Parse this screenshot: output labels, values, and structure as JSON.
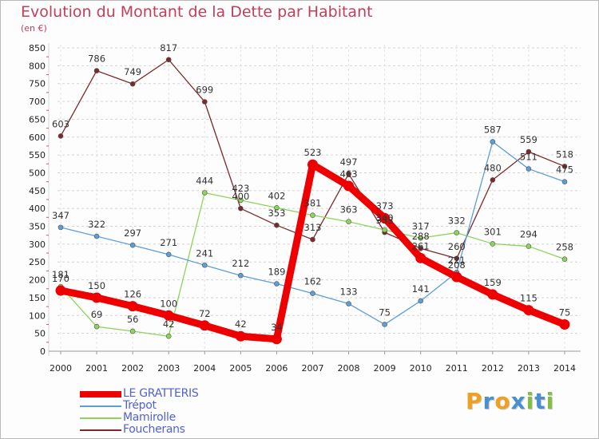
{
  "header": {
    "title": "Evolution du Montant de la Dette par Habitant",
    "unit": "(en €)"
  },
  "brand": {
    "letters": [
      "P",
      "r",
      "o",
      "x",
      "i",
      "t",
      "i"
    ],
    "colors": [
      "#f0a020",
      "#4a90d0",
      "#f0a020",
      "#4a90d0",
      "#80c040",
      "#4a90d0",
      "#80c040"
    ]
  },
  "chart_data": {
    "type": "line",
    "title": "Evolution du Montant de la Dette par Habitant",
    "subtitle": "(en €)",
    "xlabel": "",
    "ylabel": "",
    "x": [
      "2000",
      "2001",
      "2002",
      "2003",
      "2004",
      "2005",
      "2006",
      "2007",
      "2008",
      "2009",
      "2010",
      "2011",
      "2012",
      "2013",
      "2014"
    ],
    "yticks": [
      "0",
      "50",
      "100",
      "150",
      "200",
      "250",
      "300",
      "350",
      "400",
      "450",
      "500",
      "550",
      "600",
      "650",
      "700",
      "750",
      "800",
      "850"
    ],
    "ylim": [
      0,
      850
    ],
    "grid": "horizontal dashed",
    "legend_position": "bottom-left",
    "series": [
      {
        "name": "Foucherans",
        "color": "#7a2a2a",
        "values": [
          603,
          786,
          749,
          817,
          699,
          400,
          353,
          313,
          497,
          333,
          288,
          260,
          480,
          559,
          518
        ],
        "labels": [
          "603",
          "786",
          "749",
          "817",
          "699",
          "400",
          "353",
          "313",
          "497",
          "333",
          "288",
          "260",
          "480",
          "559",
          "518"
        ]
      },
      {
        "name": "Mamirolle",
        "color": "#8cd45a",
        "values": [
          181,
          69,
          56,
          42,
          444,
          423,
          402,
          381,
          363,
          340,
          317,
          332,
          301,
          294,
          258
        ],
        "labels": [
          "181",
          "69",
          "56",
          "42",
          "444",
          "423",
          "402",
          "381",
          "363",
          "340",
          "317",
          "332",
          "301",
          "294",
          "258"
        ]
      },
      {
        "name": "Trépot",
        "color": "#5c9ed6",
        "values": [
          347,
          322,
          297,
          271,
          241,
          212,
          189,
          162,
          133,
          75,
          141,
          221,
          587,
          511,
          475
        ],
        "labels": [
          "347",
          "322",
          "297",
          "271",
          "241",
          "212",
          "189",
          "162",
          "133",
          "75",
          "141",
          "221",
          "587",
          "511",
          "475"
        ]
      },
      {
        "name": "LE GRATTERIS",
        "color": "#ee0000",
        "values": [
          170,
          150,
          126,
          100,
          72,
          42,
          34,
          523,
          463,
          373,
          261,
          208,
          159,
          115,
          75
        ],
        "labels": [
          "170",
          "150",
          "126",
          "100",
          "72",
          "42",
          "34",
          "523",
          "463",
          "373",
          "261",
          "208",
          "159",
          "115",
          "75"
        ]
      }
    ],
    "legend_order": [
      "LE GRATTERIS",
      "Trépot",
      "Mamirolle",
      "Foucherans"
    ]
  }
}
